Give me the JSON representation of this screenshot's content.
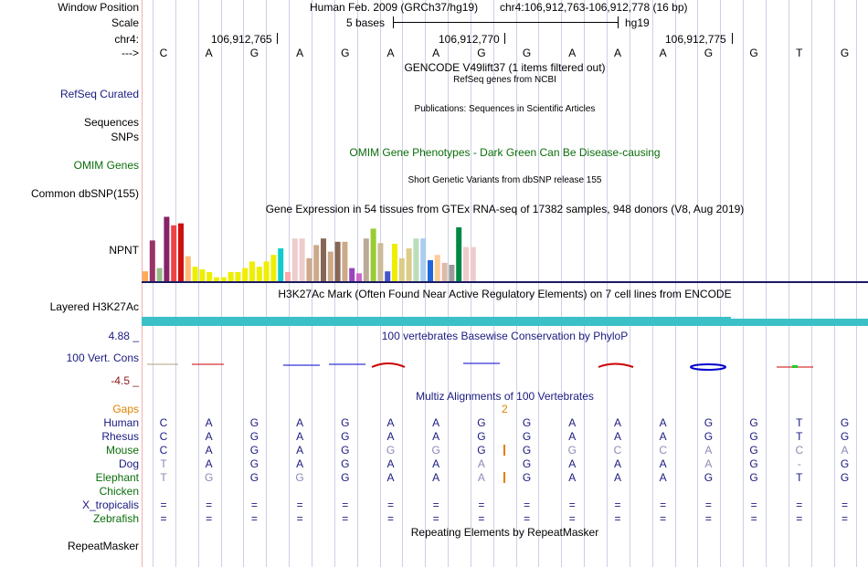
{
  "header": {
    "window_position_label": "Window Position",
    "assembly": "Human Feb. 2009 (GRCh37/hg19)",
    "position": "chr4:106,912,763-106,912,778 (16 bp)",
    "scale_label": "Scale",
    "scale_text": "5 bases",
    "scale_db": "hg19",
    "chrom_label": "chr4:",
    "coord_ticks": [
      "106,912,765",
      "106,912,770",
      "106,912,775"
    ],
    "strand_label": "--->"
  },
  "sequence": [
    "C",
    "A",
    "G",
    "A",
    "G",
    "A",
    "A",
    "G",
    "G",
    "A",
    "A",
    "A",
    "G",
    "G",
    "T",
    "G"
  ],
  "tracks": {
    "gencode_title": "GENCODE V49lift37 (1 items filtered out)",
    "refseq_title": "RefSeq genes from NCBI",
    "refseq_label": "RefSeq Curated",
    "pubs_title": "Publications: Sequences in Scientific Articles",
    "sequences_label": "Sequences",
    "snps_label": "SNPs",
    "omim_title": "OMIM Gene Phenotypes - Dark Green Can Be Disease-causing",
    "omim_label": "OMIM Genes",
    "dbsnp_title": "Short Genetic Variants from dbSNP release 155",
    "dbsnp_label": "Common dbSNP(155)",
    "gtex_title": "Gene Expression in 54 tissues from GTEx RNA-seq of 17382 samples, 948 donors (V8, Aug 2019)",
    "gtex_label": "NPNT",
    "h3k27ac_title": "H3K27Ac Mark (Often Found Near Active Regulatory Elements) on 7 cell lines from ENCODE",
    "h3k27ac_label": "Layered H3K27Ac",
    "phylop_title": "100 vertebrates Basewise Conservation by PhyloP",
    "phylop_label": "100 Vert. Cons",
    "phylop_max": "4.88 _",
    "phylop_min": "-4.5 _",
    "multiz_title": "Multiz Alignments of 100 Vertebrates",
    "gaps_label": "Gaps",
    "gap_count": "2",
    "rmsk_title": "Repeating Elements by RepeatMasker",
    "rmsk_label": "RepeatMasker"
  },
  "gtex_bars": [
    {
      "value": 15,
      "color": "#ffaa55"
    },
    {
      "value": 62,
      "color": "#993366"
    },
    {
      "value": 20,
      "color": "#99bb88"
    },
    {
      "value": 98,
      "color": "#882266"
    },
    {
      "value": 85,
      "color": "#ee4444"
    },
    {
      "value": 88,
      "color": "#cc1111"
    },
    {
      "value": 38,
      "color": "#ffbb77"
    },
    {
      "value": 22,
      "color": "#eeee00"
    },
    {
      "value": 18,
      "color": "#eeee00"
    },
    {
      "value": 14,
      "color": "#eeee00"
    },
    {
      "value": 6,
      "color": "#eeee00"
    },
    {
      "value": 6,
      "color": "#eeee00"
    },
    {
      "value": 14,
      "color": "#eeee00"
    },
    {
      "value": 14,
      "color": "#eeee00"
    },
    {
      "value": 20,
      "color": "#eeee00"
    },
    {
      "value": 30,
      "color": "#eeee00"
    },
    {
      "value": 22,
      "color": "#eeee00"
    },
    {
      "value": 30,
      "color": "#eeee00"
    },
    {
      "value": 40,
      "color": "#eeee00"
    },
    {
      "value": 50,
      "color": "#11cccc"
    },
    {
      "value": 14,
      "color": "#ffaaaa"
    },
    {
      "value": 65,
      "color": "#eecccc"
    },
    {
      "value": 65,
      "color": "#eecccc"
    },
    {
      "value": 35,
      "color": "#ccaa88"
    },
    {
      "value": 55,
      "color": "#ccaa88"
    },
    {
      "value": 65,
      "color": "#886655"
    },
    {
      "value": 45,
      "color": "#ccaa88"
    },
    {
      "value": 60,
      "color": "#886655"
    },
    {
      "value": 60,
      "color": "#ccaa88"
    },
    {
      "value": 20,
      "color": "#9944bb"
    },
    {
      "value": 12,
      "color": "#cc66cc"
    },
    {
      "value": 65,
      "color": "#bbaa99"
    },
    {
      "value": 80,
      "color": "#99cc33"
    },
    {
      "value": 58,
      "color": "#ccbb99"
    },
    {
      "value": 15,
      "color": "#4455cc"
    },
    {
      "value": 57,
      "color": "#eeee00"
    },
    {
      "value": 35,
      "color": "#ddcc88"
    },
    {
      "value": 50,
      "color": "#ddcc88"
    },
    {
      "value": 65,
      "color": "#bbddbb"
    },
    {
      "value": 65,
      "color": "#aaccee"
    },
    {
      "value": 32,
      "color": "#2266dd"
    },
    {
      "value": 40,
      "color": "#ffcc99"
    },
    {
      "value": 28,
      "color": "#ddbbaa"
    },
    {
      "value": 25,
      "color": "#999999"
    },
    {
      "value": 82,
      "color": "#008844"
    },
    {
      "value": 52,
      "color": "#eecccc"
    },
    {
      "value": 52,
      "color": "#eecccc"
    }
  ],
  "species": [
    {
      "name": "Human",
      "color": "#1a1a80",
      "seq": [
        "C",
        "A",
        "G",
        "A",
        "G",
        "A",
        "A",
        "G",
        "G",
        "A",
        "A",
        "A",
        "G",
        "G",
        "T",
        "G"
      ],
      "faded": []
    },
    {
      "name": "Rhesus",
      "color": "#1a1a80",
      "seq": [
        "C",
        "A",
        "G",
        "A",
        "G",
        "A",
        "A",
        "G",
        "G",
        "A",
        "A",
        "A",
        "G",
        "G",
        "T",
        "G"
      ],
      "faded": []
    },
    {
      "name": "Mouse",
      "color": "#0a6e0a",
      "seq": [
        "C",
        "A",
        "G",
        "A",
        "G",
        "G",
        "G",
        "G",
        "G",
        "G",
        "C",
        "C",
        "A",
        "G",
        "C",
        "A"
      ],
      "faded": [
        5,
        6,
        9,
        10,
        11,
        12,
        14,
        15
      ]
    },
    {
      "name": "Dog",
      "color": "#1a1a80",
      "seq": [
        "T",
        "A",
        "G",
        "A",
        "G",
        "A",
        "A",
        "A",
        "G",
        "A",
        "A",
        "A",
        "A",
        "G",
        "-",
        "G"
      ],
      "faded": [
        0,
        7,
        12,
        14
      ]
    },
    {
      "name": "Elephant",
      "color": "#0a6e0a",
      "seq": [
        "T",
        "G",
        "G",
        "G",
        "G",
        "A",
        "A",
        "A",
        "G",
        "A",
        "A",
        "A",
        "G",
        "G",
        "T",
        "G"
      ],
      "faded": [
        0,
        1,
        3,
        7
      ]
    },
    {
      "name": "Chicken",
      "color": "#0a6e0a",
      "seq": [],
      "faded": []
    },
    {
      "name": "X_tropicalis",
      "color": "#1a1a80",
      "seq": [
        "=",
        "=",
        "=",
        "=",
        "=",
        "=",
        "=",
        "=",
        "=",
        "=",
        "=",
        "=",
        "=",
        "=",
        "=",
        "="
      ],
      "faded": []
    },
    {
      "name": "Zebrafish",
      "color": "#0a6e0a",
      "seq": [
        "=",
        "=",
        "=",
        "=",
        "=",
        "=",
        "=",
        "=",
        "=",
        "=",
        "=",
        "=",
        "=",
        "=",
        "=",
        "="
      ],
      "faded": []
    }
  ],
  "colors": {
    "h3k27ac": "#3cc0c8",
    "phylop_pos": "#0000cc",
    "phylop_neg": "#cc0000",
    "insert": "#e08000",
    "faded_base": "#8a8ab8"
  }
}
